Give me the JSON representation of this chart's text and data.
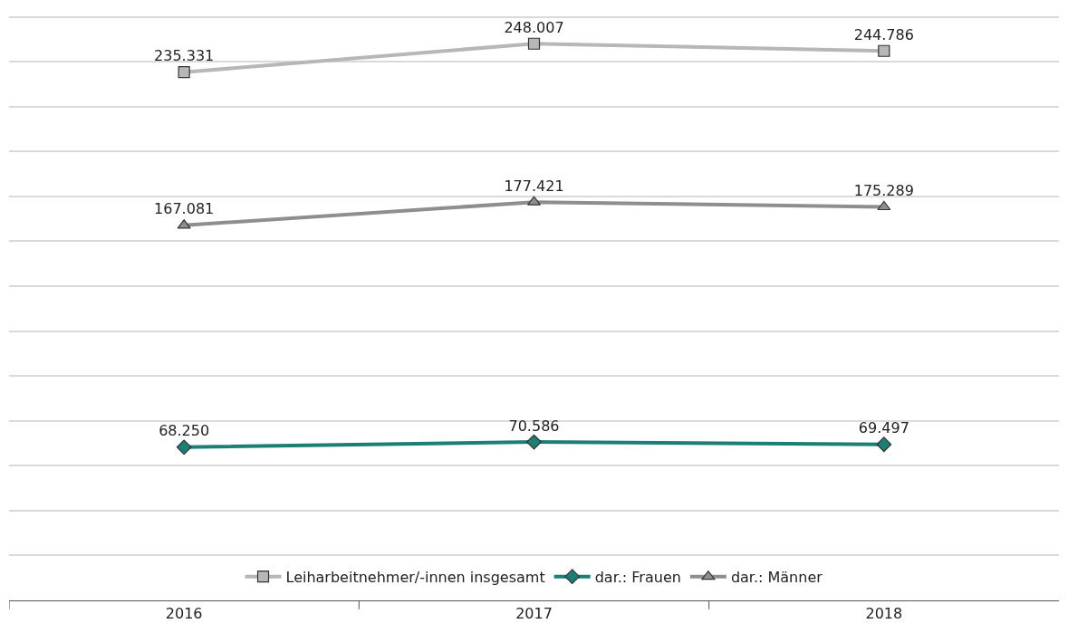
{
  "chart_data": {
    "type": "line",
    "categories": [
      "2016",
      "2017",
      "2018"
    ],
    "series": [
      {
        "name": "Leiharbeitnehmer/-innen insgesamt",
        "color": "#b7b7b7",
        "marker": "square",
        "values": [
          235331,
          248007,
          244786
        ],
        "value_labels": [
          "235.331",
          "248.007",
          "244.786"
        ]
      },
      {
        "name": "dar.: Frauen",
        "color": "#1b7f74",
        "marker": "diamond",
        "values": [
          68250,
          70586,
          69497
        ],
        "value_labels": [
          "68.250",
          "70.586",
          "69.497"
        ]
      },
      {
        "name": "dar.: Männer",
        "color": "#8e8e8e",
        "marker": "triangle",
        "values": [
          167081,
          177421,
          175289
        ],
        "value_labels": [
          "167.081",
          "177.421",
          "175.289"
        ]
      }
    ],
    "tick_labels": "x",
    "grid": "y",
    "legend": "bottom",
    "line_style": "solid"
  }
}
